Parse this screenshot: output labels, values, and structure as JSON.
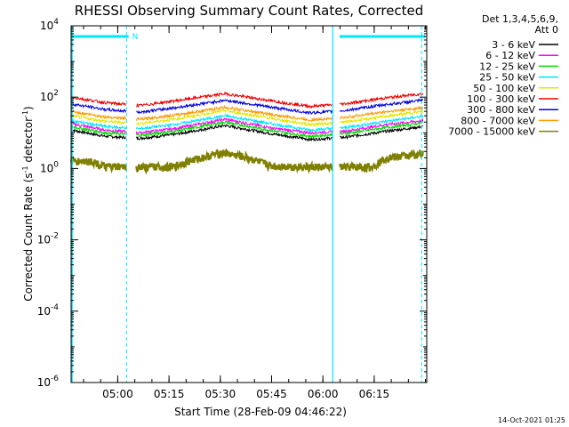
{
  "chart_data": {
    "type": "line",
    "title": "RHESSI Observing Summary Count Rates, Corrected",
    "xlabel": "Start Time (28-Feb-09 04:46:22)",
    "ylabel_main": "Corrected Count Rate (s",
    "ylabel_sup1": "-1",
    "ylabel_mid": " detector",
    "ylabel_sup2": "-1",
    "ylabel_end": ")",
    "y_scale": "log",
    "ylim": [
      1e-06,
      10000.0
    ],
    "xlim_minutes": [
      0,
      104
    ],
    "x_ticks": [
      {
        "minute": 13.63,
        "label": "05:00"
      },
      {
        "minute": 28.63,
        "label": "05:15"
      },
      {
        "minute": 43.63,
        "label": "05:30"
      },
      {
        "minute": 58.63,
        "label": "05:45"
      },
      {
        "minute": 73.63,
        "label": "06:00"
      },
      {
        "minute": 88.63,
        "label": "06:15"
      }
    ],
    "y_ticks": [
      {
        "value": 10000.0,
        "base": "10",
        "exp": "4"
      },
      {
        "value": 100.0,
        "base": "10",
        "exp": "2"
      },
      {
        "value": 1.0,
        "base": "10",
        "exp": "0"
      },
      {
        "value": 0.01,
        "base": "10",
        "exp": "-2"
      },
      {
        "value": 0.0001,
        "base": "10",
        "exp": "-4"
      },
      {
        "value": 1e-06,
        "base": "10",
        "exp": "-6"
      }
    ],
    "legend_header": [
      "Det 1,3,4,5,6,9,",
      "Att 0"
    ],
    "legend_position": "right",
    "annotations": {
      "night_bars": [
        [
          0,
          16.8
        ],
        [
          78.5,
          103.5
        ]
      ],
      "night_label": "N",
      "dashed_lines_minutes": [
        16.2,
        102.5
      ],
      "solid_lines_minutes": [
        0.3,
        76.5
      ],
      "color": "#00e5ff"
    },
    "data_gap_minutes": [
      16.2,
      19.0
    ],
    "data_gap2_minutes": [
      76.5,
      78.5
    ],
    "series": [
      {
        "name": "3 - 6 keV",
        "color": "#000000",
        "points": [
          [
            0,
            12
          ],
          [
            10,
            8
          ],
          [
            20,
            7
          ],
          [
            30,
            9
          ],
          [
            45,
            16
          ],
          [
            60,
            9
          ],
          [
            70,
            6.5
          ],
          [
            80,
            7.5
          ],
          [
            92,
            11
          ],
          [
            103,
            15
          ]
        ]
      },
      {
        "name": "6 - 12 keV",
        "color": "#ff00ff",
        "points": [
          [
            0,
            18
          ],
          [
            10,
            12
          ],
          [
            20,
            10
          ],
          [
            30,
            13
          ],
          [
            45,
            24
          ],
          [
            60,
            13
          ],
          [
            70,
            10
          ],
          [
            80,
            11
          ],
          [
            92,
            17
          ],
          [
            103,
            22
          ]
        ]
      },
      {
        "name": "12 - 25 keV",
        "color": "#00dd00",
        "points": [
          [
            0,
            15
          ],
          [
            10,
            10
          ],
          [
            20,
            8.5
          ],
          [
            30,
            11
          ],
          [
            45,
            20
          ],
          [
            60,
            11
          ],
          [
            70,
            8
          ],
          [
            80,
            9.5
          ],
          [
            92,
            14
          ],
          [
            103,
            19
          ]
        ]
      },
      {
        "name": "25 - 50 keV",
        "color": "#00e5ff",
        "points": [
          [
            0,
            22
          ],
          [
            10,
            15
          ],
          [
            20,
            13
          ],
          [
            30,
            17
          ],
          [
            45,
            30
          ],
          [
            60,
            17
          ],
          [
            70,
            12
          ],
          [
            80,
            14
          ],
          [
            92,
            21
          ],
          [
            103,
            29
          ]
        ]
      },
      {
        "name": "50 - 100 keV",
        "color": "#e6e600",
        "points": [
          [
            0,
            30
          ],
          [
            10,
            21
          ],
          [
            20,
            18
          ],
          [
            30,
            24
          ],
          [
            45,
            42
          ],
          [
            60,
            24
          ],
          [
            70,
            17
          ],
          [
            80,
            20
          ],
          [
            92,
            29
          ],
          [
            103,
            40
          ]
        ]
      },
      {
        "name": "100 - 300 keV",
        "color": "#ee0000",
        "points": [
          [
            0,
            100
          ],
          [
            10,
            70
          ],
          [
            20,
            58
          ],
          [
            30,
            78
          ],
          [
            45,
            125
          ],
          [
            60,
            75
          ],
          [
            70,
            55
          ],
          [
            80,
            65
          ],
          [
            92,
            95
          ],
          [
            103,
            125
          ]
        ]
      },
      {
        "name": "300 - 800 keV",
        "color": "#0000dd",
        "points": [
          [
            0,
            65
          ],
          [
            10,
            45
          ],
          [
            20,
            38
          ],
          [
            30,
            50
          ],
          [
            45,
            82
          ],
          [
            60,
            50
          ],
          [
            70,
            36
          ],
          [
            80,
            42
          ],
          [
            92,
            62
          ],
          [
            103,
            82
          ]
        ]
      },
      {
        "name": "800 - 7000 keV",
        "color": "#ff9900",
        "points": [
          [
            0,
            40
          ],
          [
            10,
            28
          ],
          [
            20,
            24
          ],
          [
            30,
            31
          ],
          [
            45,
            52
          ],
          [
            60,
            31
          ],
          [
            70,
            23
          ],
          [
            80,
            27
          ],
          [
            92,
            39
          ],
          [
            103,
            51
          ]
        ]
      },
      {
        "name": "7000 - 15000 keV",
        "color": "#808000",
        "points": [
          [
            0,
            1.6
          ],
          [
            6,
            1.6
          ],
          [
            10,
            1.1
          ],
          [
            30,
            1.1
          ],
          [
            34,
            1.6
          ],
          [
            44,
            2.8
          ],
          [
            52,
            2.0
          ],
          [
            58,
            1.2
          ],
          [
            70,
            1.1
          ],
          [
            88,
            1.1
          ],
          [
            92,
            2.0
          ],
          [
            103,
            2.6
          ]
        ]
      }
    ]
  },
  "footer_date": "14-Oct-2021 01:25"
}
